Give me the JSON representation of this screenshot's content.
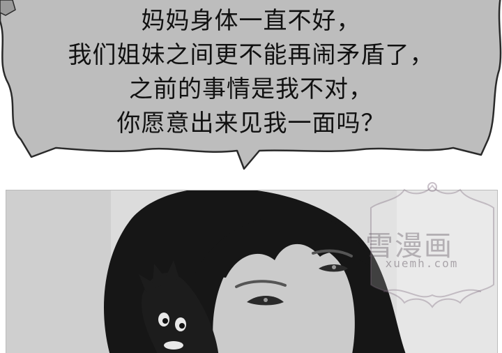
{
  "speech_bubble": {
    "lines": [
      "妈妈身体一直不好，",
      "我们姐妹之间更不能再闹矛盾了，",
      "之前的事情是我不对，",
      "你愿意出来见我一面吗？"
    ]
  },
  "watermark": {
    "title": "雪漫画",
    "url": "xuemh.com"
  },
  "colors": {
    "bubble_fill": "#bdbdbd",
    "bubble_stroke": "#2a2a2a",
    "text": "#111111",
    "panel_background": "#d9d9d9"
  }
}
